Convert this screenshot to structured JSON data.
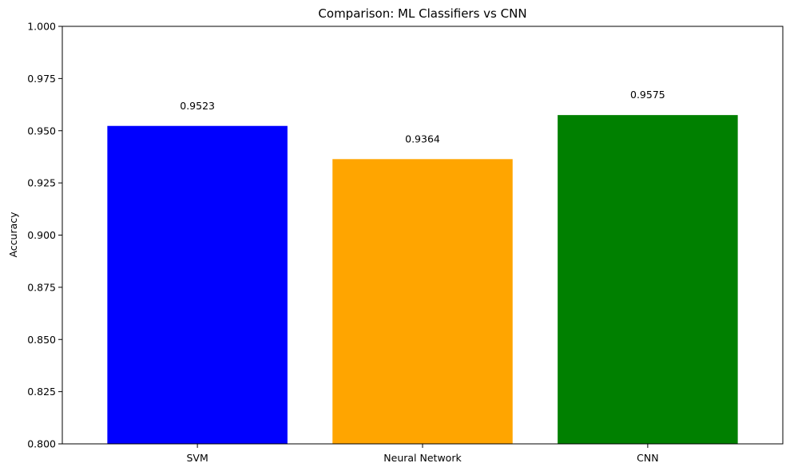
{
  "chart_data": {
    "type": "bar",
    "title": "Comparison: ML Classifiers vs CNN",
    "xlabel": "",
    "ylabel": "Accuracy",
    "categories": [
      "SVM",
      "Neural Network",
      "CNN"
    ],
    "values": [
      0.9523,
      0.9364,
      0.9575
    ],
    "data_labels": [
      "0.9523",
      "0.9364",
      "0.9575"
    ],
    "colors": [
      "#0000ff",
      "#ffa500",
      "#008000"
    ],
    "ylim": [
      0.8,
      1.0
    ],
    "yticks": [
      0.8,
      0.825,
      0.85,
      0.875,
      0.9,
      0.925,
      0.95,
      0.975,
      1.0
    ],
    "ytick_labels": [
      "0.800",
      "0.825",
      "0.850",
      "0.875",
      "0.900",
      "0.925",
      "0.950",
      "0.975",
      "1.000"
    ],
    "grid": false,
    "legend": "none"
  }
}
